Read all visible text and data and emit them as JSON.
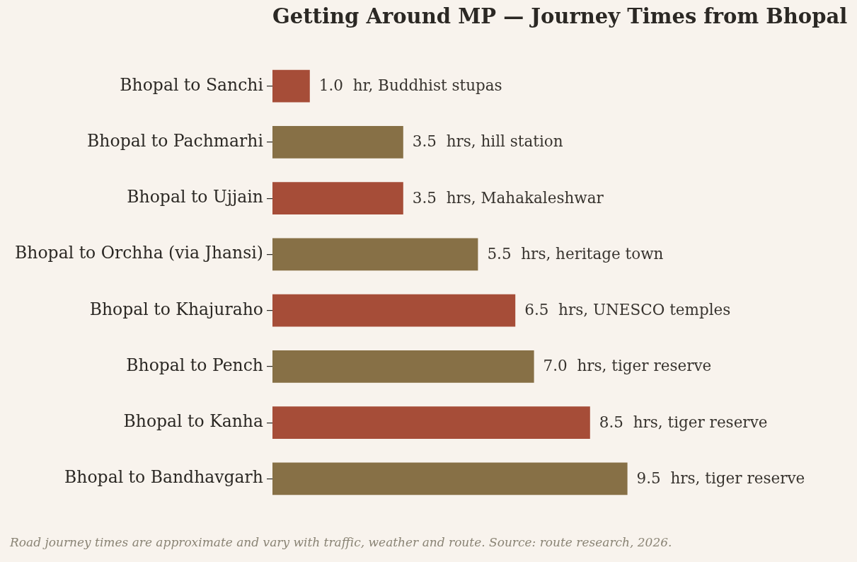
{
  "chart_data": {
    "type": "bar",
    "orientation": "horizontal",
    "title": "Getting Around MP — Journey Times from Bhopal",
    "categories": [
      "Bhopal to Sanchi",
      "Bhopal to Pachmarhi",
      "Bhopal to Ujjain",
      "Bhopal to Orchha (via Jhansi)",
      "Bhopal to Khajuraho",
      "Bhopal to Pench",
      "Bhopal to Kanha",
      "Bhopal to Bandhavgarh"
    ],
    "values": [
      1.0,
      3.5,
      3.5,
      5.5,
      6.5,
      7.0,
      8.5,
      9.5
    ],
    "colors": [
      "#a64d38",
      "#877046",
      "#a64d38",
      "#877046",
      "#a64d38",
      "#877046",
      "#a64d38",
      "#877046"
    ],
    "value_labels": [
      "1.0  hr, Buddhist stupas",
      "3.5  hrs, hill station",
      "3.5  hrs, Mahakaleshwar",
      "5.5  hrs, heritage town",
      "6.5  hrs, UNESCO temples",
      "7.0  hrs, tiger reserve",
      "8.5  hrs, tiger reserve",
      "9.5  hrs, tiger reserve"
    ],
    "tick_labels": "y",
    "annotations": [
      "Road journey times are approximate and vary with traffic, weather and route. Source: route research, 2026."
    ]
  }
}
